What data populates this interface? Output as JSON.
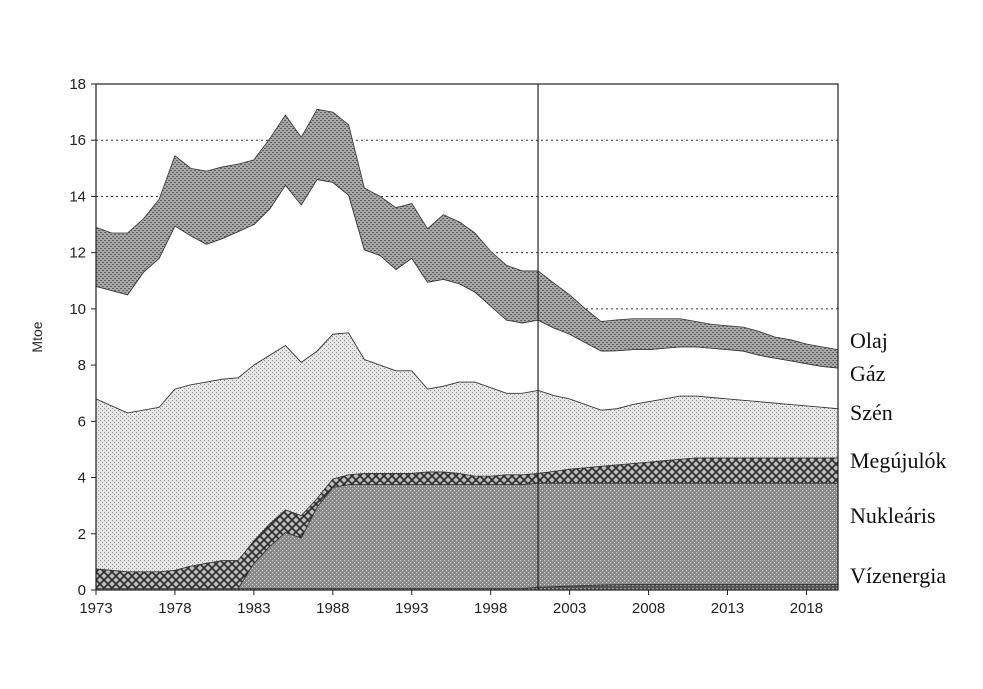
{
  "chart_data": {
    "type": "area",
    "stacked": true,
    "ylabel": "Mtoe",
    "xlim": [
      1973,
      2020
    ],
    "ylim": [
      0,
      18
    ],
    "yticks": [
      "0",
      "2",
      "4",
      "6",
      "8",
      "10",
      "12",
      "14",
      "16",
      "18"
    ],
    "xticks": [
      "1973",
      "1978",
      "1983",
      "1988",
      "1993",
      "1998",
      "2003",
      "2008",
      "2013",
      "2018"
    ],
    "grid": "horizontal dashed",
    "vertical_marker_x": 2001,
    "x": [
      1973,
      1974,
      1975,
      1976,
      1977,
      1978,
      1979,
      1980,
      1981,
      1982,
      1983,
      1984,
      1985,
      1986,
      1987,
      1988,
      1989,
      1990,
      1991,
      1992,
      1993,
      1994,
      1995,
      1996,
      1997,
      1998,
      1999,
      2000,
      2001,
      2002,
      2003,
      2004,
      2005,
      2006,
      2007,
      2008,
      2009,
      2010,
      2011,
      2012,
      2013,
      2014,
      2015,
      2016,
      2017,
      2018,
      2019,
      2020
    ],
    "series": [
      {
        "name": "Vízenergia",
        "pattern": "hydro",
        "values": [
          0.05,
          0.05,
          0.05,
          0.05,
          0.05,
          0.05,
          0.05,
          0.05,
          0.05,
          0.05,
          0.05,
          0.05,
          0.05,
          0.05,
          0.05,
          0.05,
          0.05,
          0.05,
          0.05,
          0.05,
          0.05,
          0.05,
          0.05,
          0.05,
          0.05,
          0.05,
          0.05,
          0.05,
          0.1,
          0.12,
          0.14,
          0.16,
          0.18,
          0.19,
          0.2,
          0.2,
          0.2,
          0.2,
          0.2,
          0.2,
          0.2,
          0.2,
          0.2,
          0.2,
          0.2,
          0.2,
          0.2,
          0.2
        ]
      },
      {
        "name": "Nukleáris",
        "pattern": "nuclear",
        "values": [
          0,
          0,
          0,
          0,
          0,
          0,
          0,
          0,
          0,
          0,
          0.9,
          1.5,
          2.0,
          1.8,
          2.9,
          3.6,
          3.7,
          3.7,
          3.7,
          3.7,
          3.7,
          3.7,
          3.7,
          3.7,
          3.7,
          3.7,
          3.7,
          3.7,
          3.7,
          3.68,
          3.66,
          3.64,
          3.62,
          3.61,
          3.6,
          3.6,
          3.6,
          3.6,
          3.6,
          3.6,
          3.6,
          3.6,
          3.6,
          3.6,
          3.6,
          3.6,
          3.6,
          3.6
        ]
      },
      {
        "name": "Megújulók",
        "pattern": "renew",
        "values": [
          0.7,
          0.65,
          0.6,
          0.6,
          0.6,
          0.65,
          0.8,
          0.9,
          1.0,
          1.0,
          0.8,
          0.8,
          0.8,
          0.8,
          0.3,
          0.3,
          0.35,
          0.4,
          0.4,
          0.4,
          0.4,
          0.45,
          0.45,
          0.4,
          0.3,
          0.3,
          0.35,
          0.35,
          0.35,
          0.42,
          0.5,
          0.55,
          0.6,
          0.65,
          0.7,
          0.75,
          0.8,
          0.85,
          0.9,
          0.9,
          0.9,
          0.9,
          0.9,
          0.9,
          0.9,
          0.9,
          0.9,
          0.9
        ]
      },
      {
        "name": "Szén",
        "pattern": "coal",
        "values": [
          6.05,
          5.85,
          5.65,
          5.75,
          5.85,
          6.45,
          6.45,
          6.45,
          6.45,
          6.5,
          6.25,
          6.0,
          5.85,
          5.45,
          5.25,
          5.15,
          5.05,
          4.05,
          3.85,
          3.65,
          3.65,
          2.95,
          3.05,
          3.25,
          3.35,
          3.15,
          2.9,
          2.9,
          2.95,
          2.7,
          2.5,
          2.25,
          2.0,
          2.0,
          2.1,
          2.15,
          2.2,
          2.25,
          2.2,
          2.15,
          2.1,
          2.05,
          2.0,
          1.95,
          1.9,
          1.85,
          1.8,
          1.75
        ]
      },
      {
        "name": "Gáz",
        "pattern": "gas",
        "values": [
          4.0,
          4.1,
          4.2,
          4.9,
          5.3,
          5.8,
          5.3,
          4.9,
          5.0,
          5.2,
          5.0,
          5.2,
          5.7,
          5.6,
          6.1,
          5.4,
          4.9,
          3.9,
          3.9,
          3.6,
          4.0,
          3.8,
          3.8,
          3.5,
          3.2,
          2.9,
          2.6,
          2.5,
          2.5,
          2.4,
          2.3,
          2.2,
          2.1,
          2.06,
          1.95,
          1.85,
          1.8,
          1.75,
          1.75,
          1.75,
          1.75,
          1.75,
          1.65,
          1.6,
          1.55,
          1.5,
          1.45,
          1.45
        ]
      },
      {
        "name": "Olaj",
        "pattern": "oil",
        "values": [
          2.1,
          2.05,
          2.2,
          1.9,
          2.1,
          2.5,
          2.4,
          2.6,
          2.55,
          2.4,
          2.3,
          2.5,
          2.5,
          2.4,
          2.5,
          2.5,
          2.5,
          2.2,
          2.1,
          2.2,
          1.95,
          1.9,
          2.3,
          2.2,
          2.1,
          1.95,
          1.95,
          1.85,
          1.75,
          1.6,
          1.4,
          1.2,
          1.05,
          1.1,
          1.1,
          1.1,
          1.05,
          1.0,
          0.9,
          0.85,
          0.85,
          0.85,
          0.85,
          0.75,
          0.75,
          0.7,
          0.7,
          0.65
        ]
      }
    ]
  }
}
